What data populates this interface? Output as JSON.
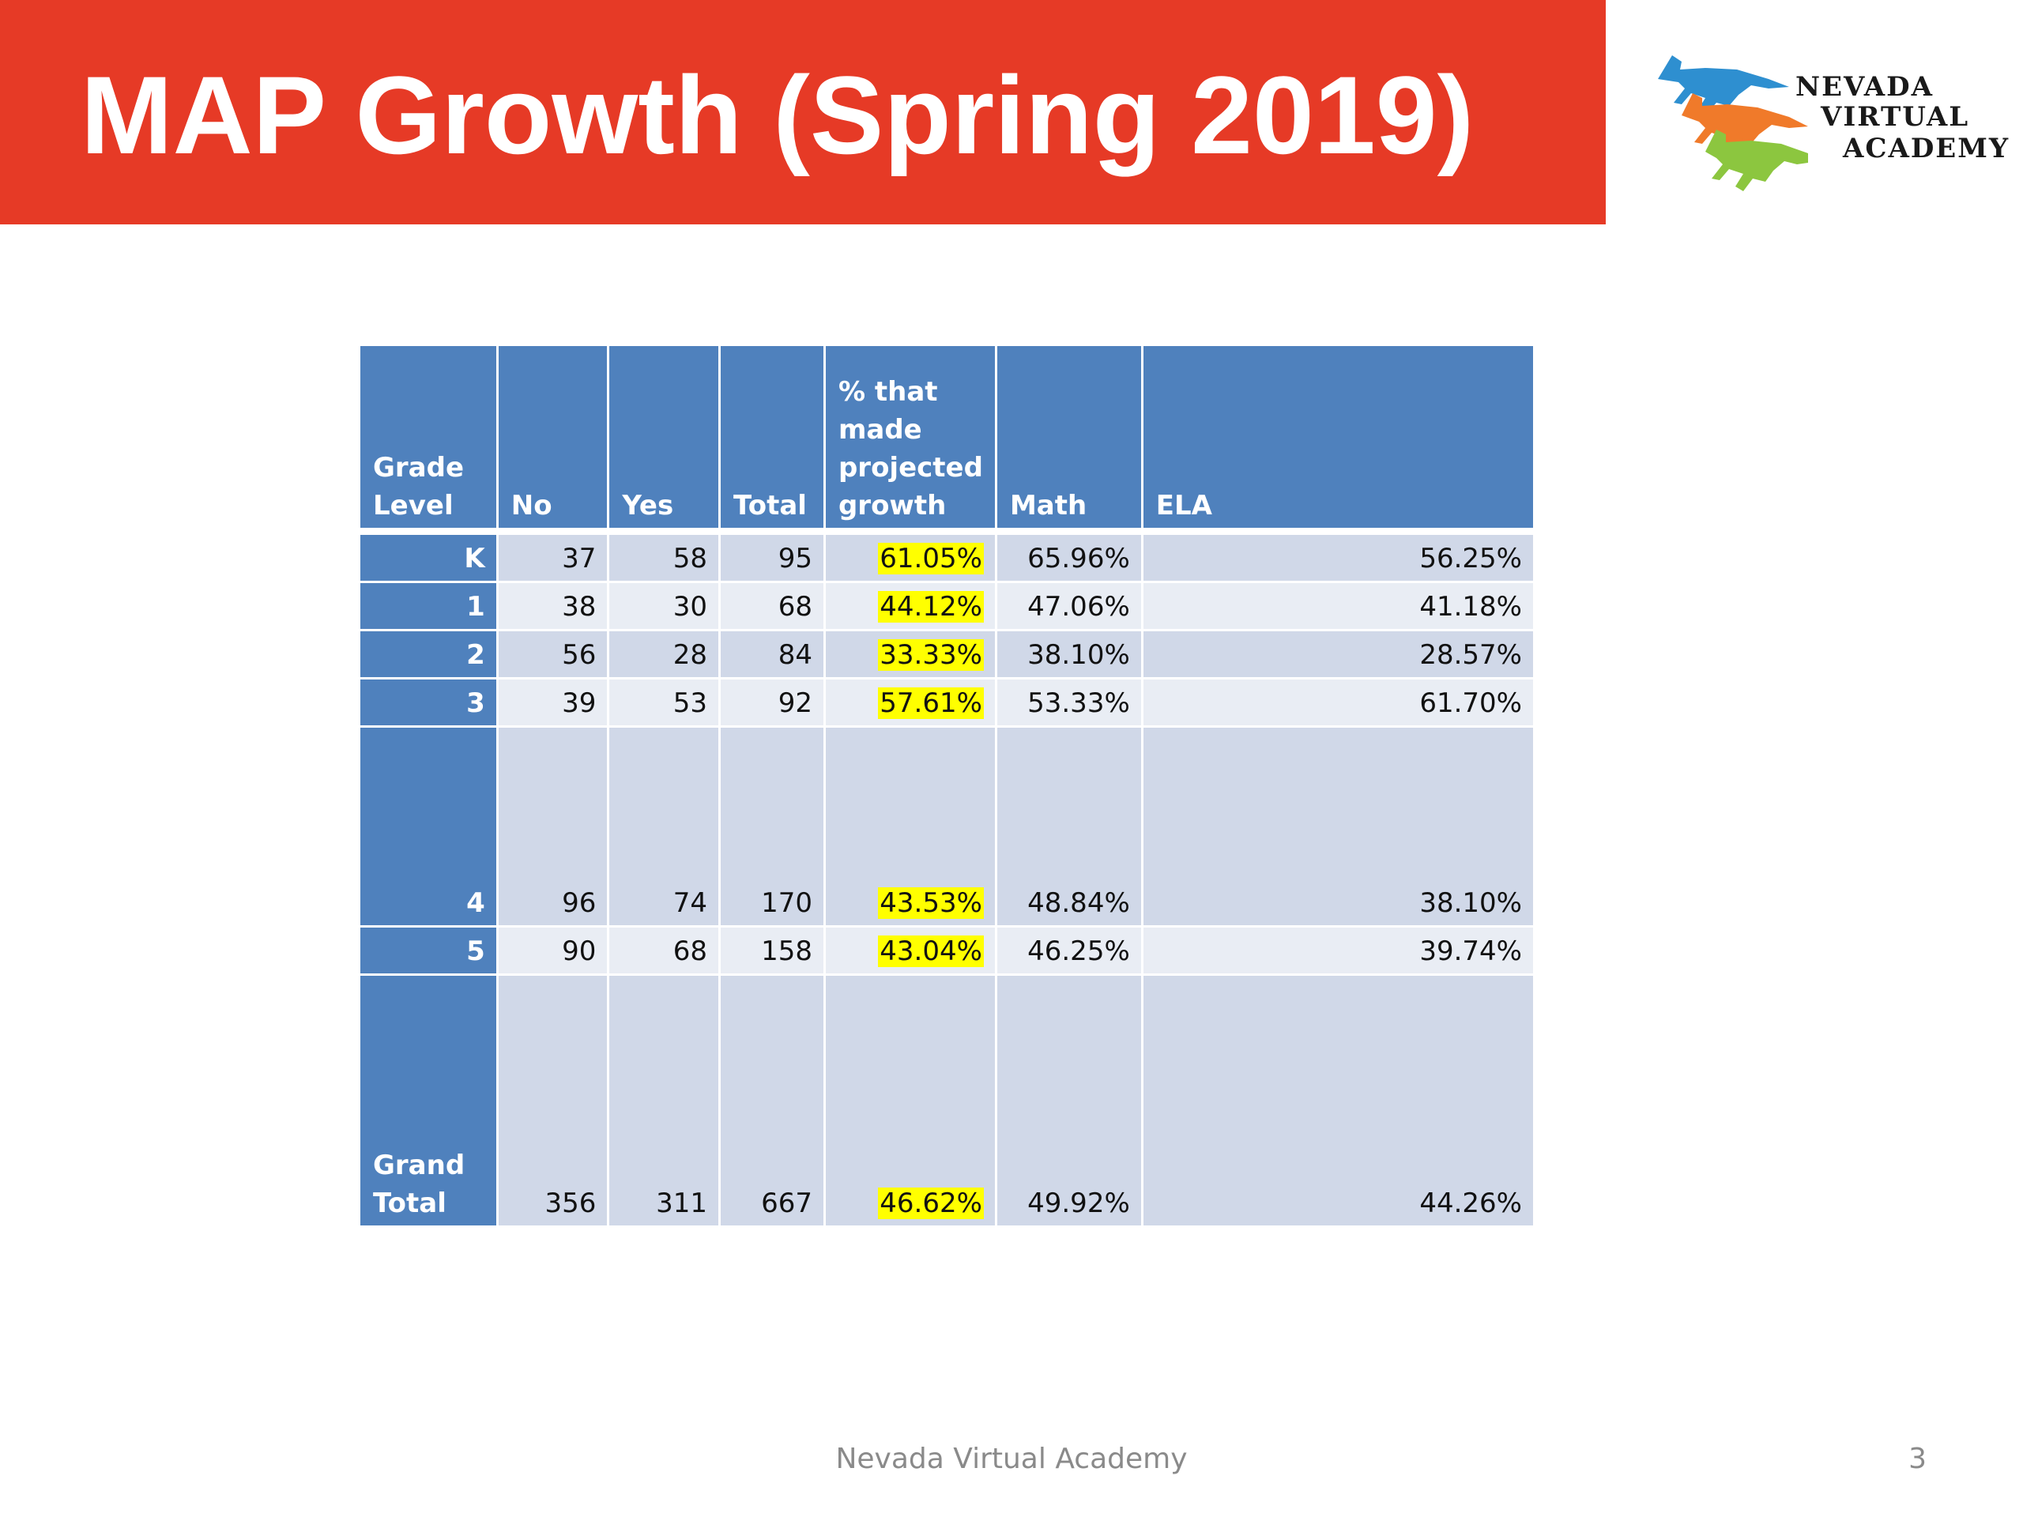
{
  "slide": {
    "title": "MAP Growth (Spring 2019)",
    "banner_color": "#e63a26",
    "footer": "Nevada Virtual Academy",
    "page_number": "3"
  },
  "logo": {
    "line1": "NEVADA",
    "line2": "VIRTUAL",
    "line3": "ACADEMY",
    "horse_colors": [
      "#2e8fd0",
      "#f07a2a",
      "#8cc63f"
    ]
  },
  "table": {
    "header_color": "#4f81bd",
    "highlight_color": "#ffff00",
    "headers": {
      "grade": "Grade Level",
      "no": "No",
      "yes": "Yes",
      "total": "Total",
      "pct": "% that made projected growth",
      "math": "Math",
      "ela": "ELA"
    },
    "rows": [
      {
        "grade": "K",
        "no": "37",
        "yes": "58",
        "total": "95",
        "pct": "61.05%",
        "math": "65.96%",
        "ela": "56.25%"
      },
      {
        "grade": "1",
        "no": "38",
        "yes": "30",
        "total": "68",
        "pct": "44.12%",
        "math": "47.06%",
        "ela": "41.18%"
      },
      {
        "grade": "2",
        "no": "56",
        "yes": "28",
        "total": "84",
        "pct": "33.33%",
        "math": "38.10%",
        "ela": "28.57%"
      },
      {
        "grade": "3",
        "no": "39",
        "yes": "53",
        "total": "92",
        "pct": "57.61%",
        "math": "53.33%",
        "ela": "61.70%"
      },
      {
        "grade": "4",
        "no": "96",
        "yes": "74",
        "total": "170",
        "pct": "43.53%",
        "math": "48.84%",
        "ela": "38.10%"
      },
      {
        "grade": "5",
        "no": "90",
        "yes": "68",
        "total": "158",
        "pct": "43.04%",
        "math": "46.25%",
        "ela": "39.74%"
      },
      {
        "grade": "Grand Total",
        "no": "356",
        "yes": "311",
        "total": "667",
        "pct": "46.62%",
        "math": "49.92%",
        "ela": "44.26%"
      }
    ]
  }
}
